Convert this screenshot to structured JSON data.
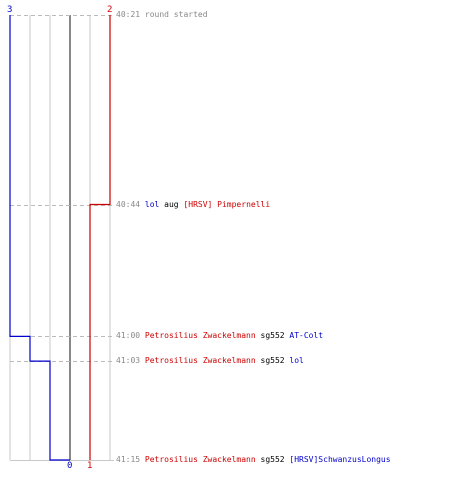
{
  "chart_data": {
    "type": "line",
    "title": "",
    "xlabel": "",
    "ylabel": "",
    "xlim": [
      3,
      -2
    ],
    "ylim": [
      "40:21",
      "41:15"
    ],
    "top_labels": [
      {
        "value": "3",
        "color": "#0000cc"
      },
      {
        "value": "2",
        "color": "#cc0000"
      }
    ],
    "bottom_labels": [
      {
        "value": "0",
        "color": "#0000cc"
      },
      {
        "value": "1",
        "color": "#cc0000"
      }
    ],
    "series": [
      {
        "color": "#0000cc",
        "points": [
          {
            "time": "40:21",
            "value": 3
          },
          {
            "time": "41:00",
            "value": 2
          },
          {
            "time": "41:03",
            "value": 1
          },
          {
            "time": "41:15",
            "value": 0
          }
        ]
      },
      {
        "color": "#cc0000",
        "points": [
          {
            "time": "40:21",
            "value": -2
          },
          {
            "time": "40:44",
            "value": -1
          }
        ]
      }
    ],
    "events": [
      {
        "time": "40:21",
        "parts": [
          {
            "text": "round started",
            "color": "grey"
          }
        ]
      },
      {
        "time": "40:44",
        "parts": [
          {
            "text": "lol",
            "color": "blue"
          },
          {
            "text": " aug ",
            "color": "black"
          },
          {
            "text": "[HRSV] Pimpernelli",
            "color": "red"
          }
        ]
      },
      {
        "time": "41:00",
        "parts": [
          {
            "text": "Petrosilius Zwackelmann",
            "color": "red"
          },
          {
            "text": " sg552 ",
            "color": "black"
          },
          {
            "text": "AT-Colt",
            "color": "blue"
          }
        ]
      },
      {
        "time": "41:03",
        "parts": [
          {
            "text": "Petrosilius Zwackelmann",
            "color": "red"
          },
          {
            "text": " sg552 ",
            "color": "black"
          },
          {
            "text": "lol",
            "color": "blue"
          }
        ]
      },
      {
        "time": "41:15",
        "parts": [
          {
            "text": "Petrosilius Zwackelmann",
            "color": "red"
          },
          {
            "text": " sg552 ",
            "color": "black"
          },
          {
            "text": "[HRSV]SchwanzusLongus",
            "color": "blue"
          }
        ]
      }
    ]
  }
}
